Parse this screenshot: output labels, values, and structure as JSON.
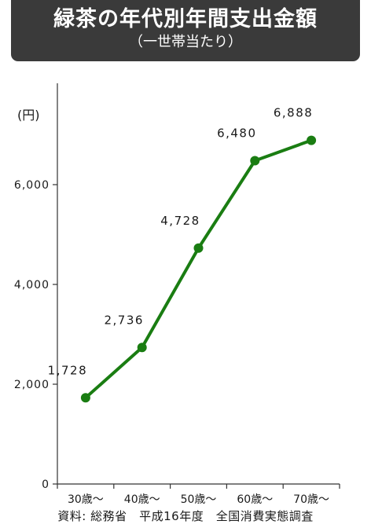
{
  "banner": {
    "title": "緑茶の年代別年間支出金額",
    "subtitle": "（一世帯当たり）"
  },
  "source": "資料: 総務省　平成16年度　全国消費実態調査",
  "colors": {
    "banner": "#3a3a3a",
    "line": "#1a7d12",
    "axis": "#333333"
  },
  "chart_data": {
    "type": "line",
    "title": "緑茶の年代別年間支出金額",
    "subtitle": "（一世帯当たり）",
    "ylabel": "(円)",
    "xlabel": "",
    "categories": [
      "30歳～",
      "40歳～",
      "50歳～",
      "60歳～",
      "70歳～"
    ],
    "series": [
      {
        "values": [
          1728,
          2736,
          4728,
          6480,
          6888
        ],
        "labels": [
          "1,728",
          "2,736",
          "4,728",
          "6,480",
          "6,888"
        ]
      }
    ],
    "ylim": [
      0,
      8000
    ],
    "yticks": [
      0,
      2000,
      4000,
      6000
    ],
    "ytick_labels": [
      "0",
      "2,000",
      "4,000",
      "6,000"
    ],
    "grid": false,
    "legend": "none"
  }
}
